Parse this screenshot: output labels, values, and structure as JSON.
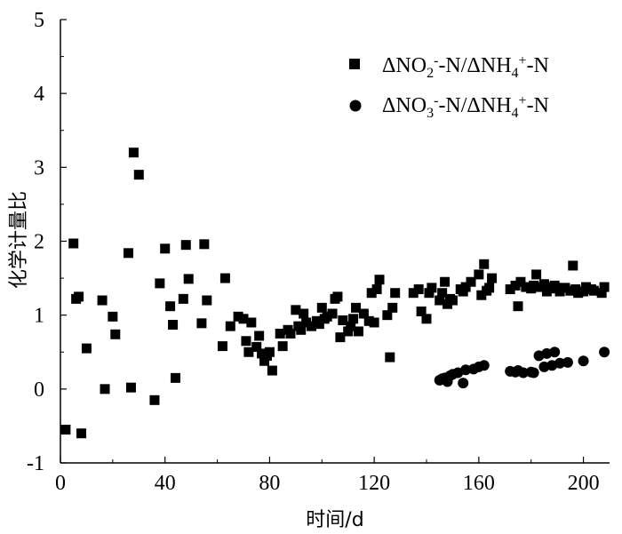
{
  "chart_data": {
    "type": "scatter",
    "xlabel": "时间/d",
    "ylabel": "化学计量比",
    "xlim": [
      0,
      210
    ],
    "ylim": [
      -1,
      5
    ],
    "xticks": [
      0,
      40,
      80,
      120,
      160,
      200
    ],
    "yticks": [
      -1,
      0,
      1,
      2,
      3,
      4,
      5
    ],
    "legend_position": "top-right",
    "series": [
      {
        "name": "ΔNO₂⁻-N/ΔNH₄⁺-N",
        "marker": "square",
        "color": "#000000",
        "points": [
          [
            2,
            -0.55
          ],
          [
            5,
            1.97
          ],
          [
            6,
            1.22
          ],
          [
            7,
            1.25
          ],
          [
            8,
            -0.6
          ],
          [
            10,
            0.55
          ],
          [
            16,
            1.2
          ],
          [
            17,
            0.0
          ],
          [
            20,
            0.98
          ],
          [
            21,
            0.74
          ],
          [
            26,
            1.84
          ],
          [
            27,
            0.02
          ],
          [
            28,
            3.2
          ],
          [
            30,
            2.9
          ],
          [
            36,
            -0.15
          ],
          [
            38,
            1.43
          ],
          [
            40,
            1.9
          ],
          [
            42,
            1.12
          ],
          [
            43,
            0.87
          ],
          [
            44,
            0.15
          ],
          [
            47,
            1.22
          ],
          [
            48,
            1.95
          ],
          [
            49,
            1.49
          ],
          [
            54,
            0.89
          ],
          [
            55,
            1.96
          ],
          [
            56,
            1.2
          ],
          [
            62,
            0.58
          ],
          [
            63,
            1.5
          ],
          [
            65,
            0.85
          ],
          [
            68,
            0.98
          ],
          [
            70,
            0.95
          ],
          [
            71,
            0.65
          ],
          [
            72,
            0.5
          ],
          [
            73,
            0.9
          ],
          [
            75,
            0.57
          ],
          [
            76,
            0.72
          ],
          [
            77,
            0.48
          ],
          [
            78,
            0.38
          ],
          [
            79,
            0.45
          ],
          [
            80,
            0.5
          ],
          [
            81,
            0.25
          ],
          [
            84,
            0.75
          ],
          [
            85,
            0.58
          ],
          [
            87,
            0.8
          ],
          [
            88,
            0.75
          ],
          [
            90,
            1.07
          ],
          [
            91,
            0.85
          ],
          [
            92,
            0.8
          ],
          [
            93,
            1.02
          ],
          [
            94,
            0.9
          ],
          [
            96,
            0.85
          ],
          [
            98,
            0.92
          ],
          [
            99,
            0.88
          ],
          [
            100,
            1.1
          ],
          [
            101,
            0.95
          ],
          [
            102,
            0.98
          ],
          [
            104,
            1.02
          ],
          [
            105,
            1.22
          ],
          [
            106,
            1.25
          ],
          [
            107,
            0.7
          ],
          [
            108,
            0.93
          ],
          [
            110,
            0.78
          ],
          [
            111,
            0.85
          ],
          [
            112,
            0.95
          ],
          [
            113,
            1.1
          ],
          [
            114,
            0.78
          ],
          [
            116,
            1.02
          ],
          [
            118,
            0.92
          ],
          [
            119,
            1.3
          ],
          [
            120,
            0.9
          ],
          [
            121,
            1.35
          ],
          [
            122,
            1.48
          ],
          [
            125,
            1.0
          ],
          [
            126,
            0.43
          ],
          [
            127,
            1.1
          ],
          [
            128,
            1.3
          ],
          [
            135,
            1.3
          ],
          [
            137,
            1.35
          ],
          [
            138,
            1.05
          ],
          [
            140,
            0.95
          ],
          [
            141,
            1.3
          ],
          [
            142,
            1.37
          ],
          [
            145,
            1.2
          ],
          [
            146,
            1.3
          ],
          [
            147,
            1.45
          ],
          [
            148,
            1.15
          ],
          [
            149,
            1.22
          ],
          [
            150,
            1.2
          ],
          [
            153,
            1.35
          ],
          [
            154,
            1.32
          ],
          [
            155,
            1.38
          ],
          [
            157,
            1.45
          ],
          [
            160,
            1.55
          ],
          [
            161,
            1.27
          ],
          [
            162,
            1.69
          ],
          [
            163,
            1.33
          ],
          [
            164,
            1.37
          ],
          [
            165,
            1.5
          ],
          [
            172,
            1.35
          ],
          [
            174,
            1.4
          ],
          [
            175,
            1.12
          ],
          [
            176,
            1.45
          ],
          [
            178,
            1.38
          ],
          [
            180,
            1.36
          ],
          [
            181,
            1.4
          ],
          [
            182,
            1.55
          ],
          [
            183,
            1.38
          ],
          [
            185,
            1.42
          ],
          [
            186,
            1.32
          ],
          [
            187,
            1.38
          ],
          [
            188,
            1.36
          ],
          [
            189,
            1.4
          ],
          [
            190,
            1.37
          ],
          [
            191,
            1.32
          ],
          [
            193,
            1.37
          ],
          [
            195,
            1.33
          ],
          [
            196,
            1.67
          ],
          [
            197,
            1.35
          ],
          [
            198,
            1.3
          ],
          [
            200,
            1.32
          ],
          [
            201,
            1.38
          ],
          [
            203,
            1.35
          ],
          [
            204,
            1.33
          ],
          [
            207,
            1.3
          ],
          [
            208,
            1.38
          ]
        ]
      },
      {
        "name": "ΔNO₃⁻-N/ΔNH₄⁺-N",
        "marker": "circle",
        "color": "#000000",
        "points": [
          [
            145,
            0.12
          ],
          [
            146,
            0.14
          ],
          [
            147,
            0.15
          ],
          [
            148,
            0.1
          ],
          [
            149,
            0.18
          ],
          [
            150,
            0.2
          ],
          [
            152,
            0.22
          ],
          [
            154,
            0.08
          ],
          [
            155,
            0.26
          ],
          [
            158,
            0.27
          ],
          [
            160,
            0.3
          ],
          [
            162,
            0.32
          ],
          [
            172,
            0.24
          ],
          [
            174,
            0.23
          ],
          [
            175,
            0.25
          ],
          [
            177,
            0.22
          ],
          [
            180,
            0.23
          ],
          [
            181,
            0.22
          ],
          [
            183,
            0.45
          ],
          [
            185,
            0.3
          ],
          [
            186,
            0.48
          ],
          [
            188,
            0.32
          ],
          [
            189,
            0.5
          ],
          [
            191,
            0.35
          ],
          [
            194,
            0.36
          ],
          [
            200,
            0.38
          ],
          [
            208,
            0.5
          ]
        ]
      }
    ]
  }
}
